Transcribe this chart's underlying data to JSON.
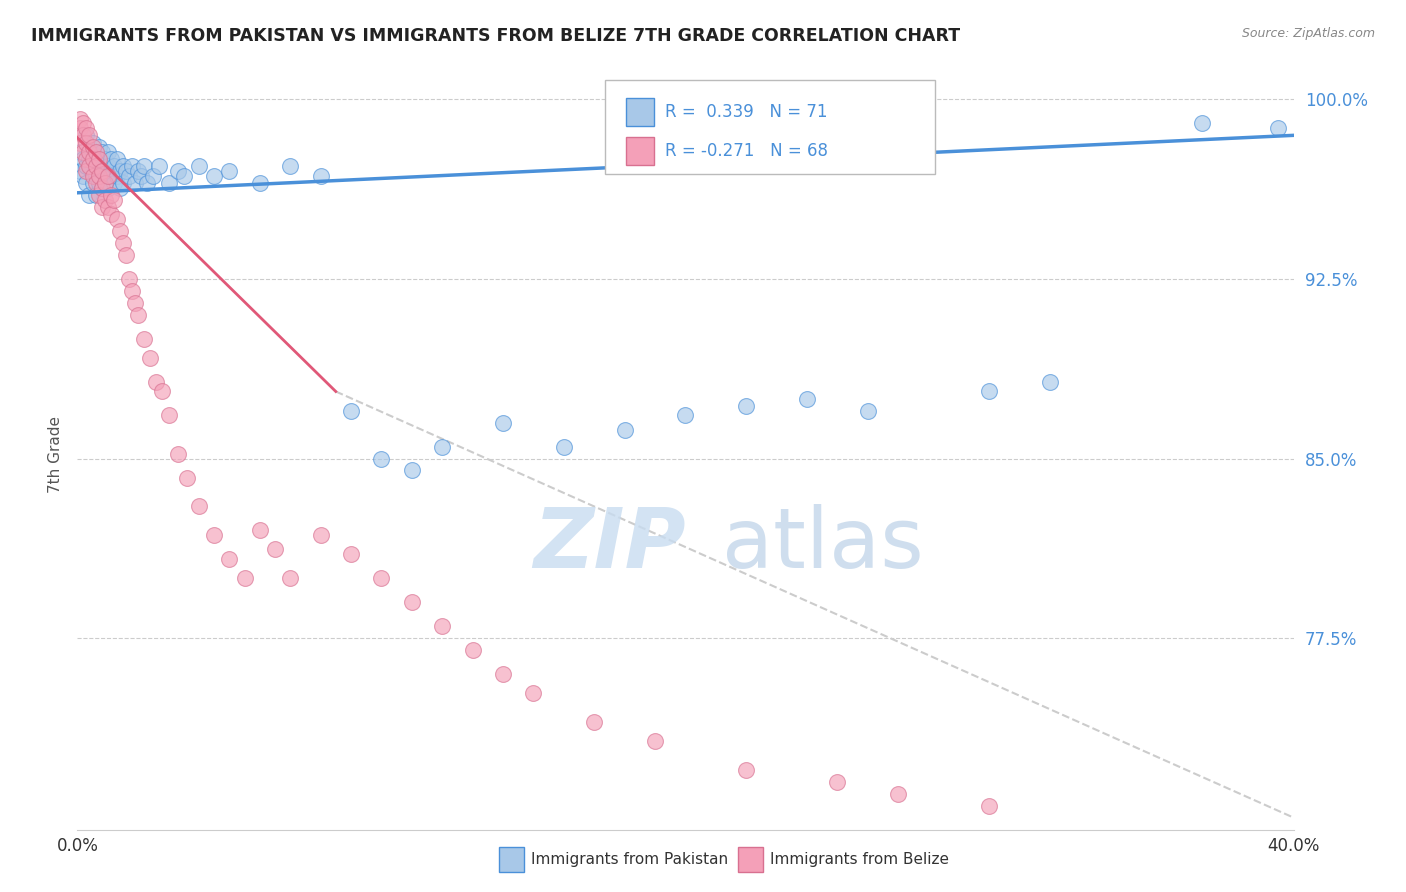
{
  "title": "IMMIGRANTS FROM PAKISTAN VS IMMIGRANTS FROM BELIZE 7TH GRADE CORRELATION CHART",
  "source": "Source: ZipAtlas.com",
  "ylabel": "7th Grade",
  "xlabel_pakistan": "Immigrants from Pakistan",
  "xlabel_belize": "Immigrants from Belize",
  "R_pakistan": 0.339,
  "N_pakistan": 71,
  "R_belize": -0.271,
  "N_belize": 68,
  "xlim": [
    0.0,
    0.4
  ],
  "ylim": [
    0.695,
    1.008
  ],
  "yticks": [
    0.775,
    0.85,
    0.925,
    1.0
  ],
  "ytick_labels": [
    "77.5%",
    "85.0%",
    "92.5%",
    "100.0%"
  ],
  "xticks": [
    0.0,
    0.05,
    0.1,
    0.15,
    0.2,
    0.25,
    0.3,
    0.35,
    0.4
  ],
  "xtick_labels": [
    "0.0%",
    "",
    "",
    "",
    "",
    "",
    "",
    "",
    "40.0%"
  ],
  "color_pakistan": "#A8C8E8",
  "color_belize": "#F4A0B8",
  "trendline_pakistan": "#4A90D9",
  "trendline_belize": "#E05878",
  "pakistan_x": [
    0.001,
    0.001,
    0.002,
    0.002,
    0.003,
    0.003,
    0.003,
    0.004,
    0.004,
    0.004,
    0.005,
    0.005,
    0.005,
    0.006,
    0.006,
    0.006,
    0.007,
    0.007,
    0.007,
    0.008,
    0.008,
    0.008,
    0.009,
    0.009,
    0.01,
    0.01,
    0.01,
    0.011,
    0.011,
    0.012,
    0.012,
    0.013,
    0.013,
    0.014,
    0.014,
    0.015,
    0.015,
    0.016,
    0.017,
    0.018,
    0.019,
    0.02,
    0.021,
    0.022,
    0.023,
    0.025,
    0.027,
    0.03,
    0.033,
    0.035,
    0.04,
    0.045,
    0.05,
    0.06,
    0.07,
    0.08,
    0.09,
    0.1,
    0.11,
    0.12,
    0.14,
    0.16,
    0.18,
    0.2,
    0.22,
    0.24,
    0.26,
    0.3,
    0.32,
    0.37,
    0.395
  ],
  "pakistan_y": [
    0.97,
    0.978,
    0.975,
    0.968,
    0.985,
    0.972,
    0.965,
    0.98,
    0.975,
    0.96,
    0.982,
    0.977,
    0.965,
    0.975,
    0.968,
    0.96,
    0.98,
    0.973,
    0.965,
    0.978,
    0.97,
    0.963,
    0.975,
    0.968,
    0.978,
    0.972,
    0.963,
    0.975,
    0.968,
    0.972,
    0.965,
    0.975,
    0.968,
    0.97,
    0.963,
    0.972,
    0.965,
    0.97,
    0.968,
    0.972,
    0.965,
    0.97,
    0.968,
    0.972,
    0.965,
    0.968,
    0.972,
    0.965,
    0.97,
    0.968,
    0.972,
    0.968,
    0.97,
    0.965,
    0.972,
    0.968,
    0.87,
    0.85,
    0.845,
    0.855,
    0.865,
    0.855,
    0.862,
    0.868,
    0.872,
    0.875,
    0.87,
    0.878,
    0.882,
    0.99,
    0.988
  ],
  "belize_x": [
    0.001,
    0.001,
    0.001,
    0.002,
    0.002,
    0.002,
    0.003,
    0.003,
    0.003,
    0.003,
    0.004,
    0.004,
    0.004,
    0.005,
    0.005,
    0.005,
    0.006,
    0.006,
    0.006,
    0.007,
    0.007,
    0.007,
    0.008,
    0.008,
    0.008,
    0.009,
    0.009,
    0.01,
    0.01,
    0.011,
    0.011,
    0.012,
    0.013,
    0.014,
    0.015,
    0.016,
    0.017,
    0.018,
    0.019,
    0.02,
    0.022,
    0.024,
    0.026,
    0.028,
    0.03,
    0.033,
    0.036,
    0.04,
    0.045,
    0.05,
    0.055,
    0.06,
    0.065,
    0.07,
    0.08,
    0.09,
    0.1,
    0.11,
    0.12,
    0.13,
    0.14,
    0.15,
    0.17,
    0.19,
    0.22,
    0.25,
    0.27,
    0.3
  ],
  "belize_y": [
    0.992,
    0.988,
    0.982,
    0.99,
    0.985,
    0.978,
    0.988,
    0.982,
    0.975,
    0.97,
    0.985,
    0.978,
    0.972,
    0.98,
    0.975,
    0.968,
    0.978,
    0.972,
    0.965,
    0.975,
    0.968,
    0.96,
    0.97,
    0.963,
    0.955,
    0.965,
    0.958,
    0.968,
    0.955,
    0.96,
    0.952,
    0.958,
    0.95,
    0.945,
    0.94,
    0.935,
    0.925,
    0.92,
    0.915,
    0.91,
    0.9,
    0.892,
    0.882,
    0.878,
    0.868,
    0.852,
    0.842,
    0.83,
    0.818,
    0.808,
    0.8,
    0.82,
    0.812,
    0.8,
    0.818,
    0.81,
    0.8,
    0.79,
    0.78,
    0.77,
    0.76,
    0.752,
    0.74,
    0.732,
    0.72,
    0.715,
    0.71,
    0.705
  ],
  "pak_trend_x0": 0.0,
  "pak_trend_y0": 0.961,
  "pak_trend_x1": 0.4,
  "pak_trend_y1": 0.985,
  "bel_trend_solid_x0": 0.0,
  "bel_trend_solid_y0": 0.984,
  "bel_trend_solid_x1": 0.085,
  "bel_trend_solid_y1": 0.878,
  "bel_trend_dash_x0": 0.085,
  "bel_trend_dash_y0": 0.878,
  "bel_trend_dash_x1": 0.4,
  "bel_trend_dash_y1": 0.7
}
